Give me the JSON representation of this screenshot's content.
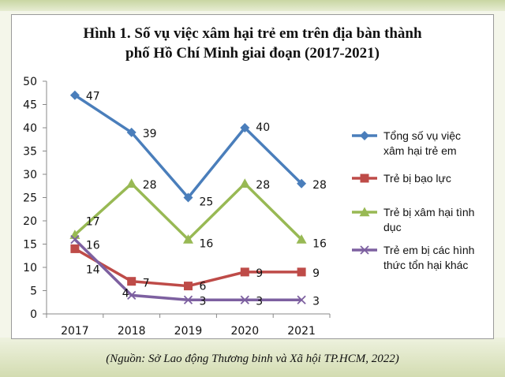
{
  "chart_data": {
    "type": "line",
    "title": "Hình 1. Số vụ việc xâm hại trẻ em trên địa bàn thành phố Hồ Chí Minh giai đoạn (2017-2021)",
    "title_lines": [
      "Hình 1. Số vụ việc xâm hại trẻ em trên địa bàn thành",
      "phố Hồ Chí Minh giai đoạn (2017-2021)"
    ],
    "x": [
      "2017",
      "2018",
      "2019",
      "2020",
      "2021"
    ],
    "ylim": [
      0,
      50
    ],
    "yticks": [
      "0",
      "5",
      "10",
      "15",
      "20",
      "25",
      "30",
      "35",
      "40",
      "45",
      "50"
    ],
    "grid": false,
    "legend_position": "right",
    "series": [
      {
        "name": "Tổng số vụ việc xâm hại trẻ em",
        "legend_lines": [
          "Tổng số vụ việc",
          "xâm hại trẻ em"
        ],
        "values": [
          47,
          39,
          25,
          40,
          28
        ],
        "color": "#4a7ebb",
        "marker": "diamond"
      },
      {
        "name": "Trẻ bị bạo lực",
        "legend_lines": [
          "Trẻ bị bạo lực"
        ],
        "values": [
          14,
          7,
          6,
          9,
          9
        ],
        "color": "#be4b48",
        "marker": "square"
      },
      {
        "name": "Trẻ bị xâm hại tình dục",
        "legend_lines": [
          "Trẻ bị xâm hại tình",
          "dục"
        ],
        "values": [
          17,
          28,
          16,
          28,
          16
        ],
        "color": "#98b954",
        "marker": "triangle"
      },
      {
        "name": "Trẻ em bị các hình thức tổn hại khác",
        "legend_lines": [
          "Trẻ em bị các hình",
          "thức tổn hại khác"
        ],
        "values": [
          16,
          4,
          3,
          3,
          3
        ],
        "color": "#7d60a0",
        "marker": "x"
      }
    ]
  },
  "source_note": "(Nguồn: Sở Lao động Thương binh và Xã hội TP.HCM, 2022)"
}
